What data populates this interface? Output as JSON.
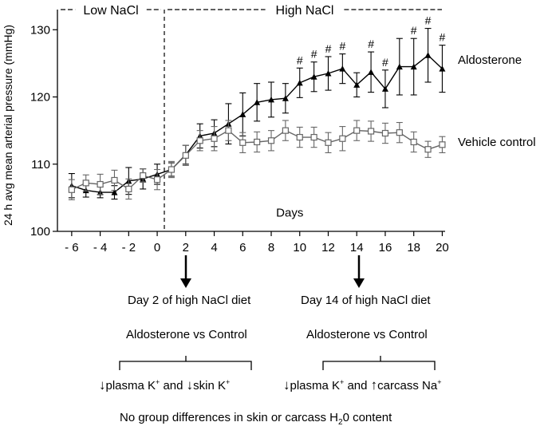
{
  "chart_data": {
    "type": "line",
    "ylabel": "24 h avg mean arterial pressure (mmHg)",
    "xlabel": "Days",
    "xlim": [
      -7,
      20.2
    ],
    "ylim": [
      100,
      133
    ],
    "yticks": [
      100,
      110,
      120,
      130
    ],
    "xticks": [
      -6,
      -4,
      -2,
      0,
      2,
      4,
      6,
      8,
      10,
      12,
      14,
      16,
      18,
      20
    ],
    "xtick_labels": [
      "- 6",
      "- 4",
      "- 2",
      "0",
      "2",
      "4",
      "6",
      "8",
      "10",
      "12",
      "14",
      "16",
      "18",
      "20"
    ],
    "divider_x": 0.5,
    "phases": [
      {
        "label": "Low NaCl",
        "from": -7,
        "to": 0.5
      },
      {
        "label": "High NaCl",
        "from": 0.5,
        "to": 20.2
      }
    ],
    "x": [
      -6,
      -5,
      -4,
      -3,
      -2,
      -1,
      0,
      1,
      2,
      3,
      4,
      5,
      6,
      7,
      8,
      9,
      10,
      11,
      12,
      13,
      14,
      15,
      16,
      17,
      18,
      19,
      20
    ],
    "series": [
      {
        "name": "Aldosterone",
        "marker": "triangle",
        "color": "#000000",
        "values": [
          106.8,
          106.1,
          105.8,
          105.8,
          107.5,
          107.8,
          108.5,
          109.2,
          111.4,
          114.2,
          114.6,
          116.0,
          117.4,
          119.2,
          119.6,
          119.8,
          122.1,
          123.0,
          123.5,
          124.2,
          121.8,
          123.7,
          121.2,
          124.5,
          124.5,
          126.2,
          124.2
        ],
        "errors": [
          1.8,
          1.0,
          0.8,
          1.0,
          2.0,
          1.5,
          1.5,
          1.0,
          1.4,
          1.8,
          2.0,
          3.0,
          3.2,
          2.8,
          2.6,
          2.2,
          2.2,
          2.2,
          2.5,
          2.2,
          1.8,
          3.0,
          2.8,
          4.2,
          4.2,
          4.0,
          3.5
        ],
        "significant": [
          false,
          false,
          false,
          false,
          false,
          false,
          false,
          false,
          false,
          false,
          false,
          false,
          false,
          false,
          false,
          false,
          true,
          true,
          true,
          true,
          false,
          true,
          true,
          false,
          true,
          true,
          true
        ]
      },
      {
        "name": "Vehicle control",
        "marker": "square",
        "color": "#666666",
        "values": [
          106.2,
          107.2,
          107.0,
          107.6,
          106.3,
          108.3,
          107.7,
          109.2,
          111.3,
          113.5,
          113.8,
          115.0,
          113.2,
          113.3,
          113.5,
          115.0,
          114.0,
          114.0,
          113.2,
          113.8,
          115.0,
          114.9,
          114.6,
          114.7,
          113.3,
          112.2,
          112.9
        ],
        "errors": [
          1.5,
          1.2,
          1.5,
          1.5,
          1.5,
          1.0,
          1.5,
          1.2,
          1.5,
          1.5,
          1.8,
          1.5,
          1.5,
          1.5,
          1.5,
          1.5,
          1.5,
          1.5,
          1.5,
          1.8,
          1.5,
          1.5,
          1.5,
          1.5,
          1.5,
          1.2,
          1.2
        ]
      }
    ],
    "significance_marker": "#"
  },
  "annotations": {
    "days_label": "Days",
    "left_box": {
      "title": "Day 2 of high NaCl diet",
      "comparison": "Aldosterone vs Control",
      "result": {
        "arrow1": "↓",
        "part1": "plasma K",
        "sup1": "+",
        "mid": " and ",
        "arrow2": "↓",
        "part2": "skin K",
        "sup2": "+"
      }
    },
    "right_box": {
      "title": "Day 14 of high NaCl diet",
      "comparison": "Aldosterone vs Control",
      "result": {
        "arrow1": "↓",
        "part1": "plasma K",
        "sup1": "+",
        "mid": " and ",
        "arrow2": "↑",
        "part2": "carcass Na",
        "sup2": "+"
      }
    },
    "footer": {
      "pre": "No group differences in skin or carcass H",
      "sub": "2",
      "post": "0 content"
    }
  }
}
